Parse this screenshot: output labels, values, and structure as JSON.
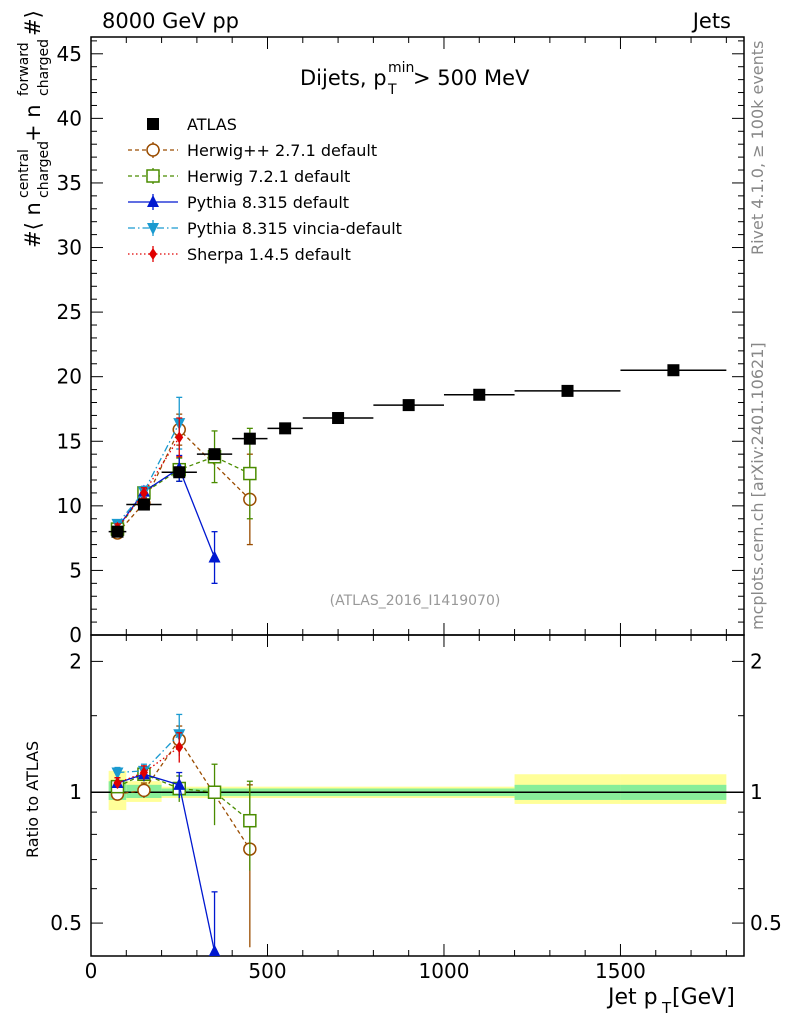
{
  "header": {
    "left": "8000 GeV pp",
    "right": "Jets",
    "right_side_1": "Rivet 4.1.0, ≥ 100k events",
    "right_side_2": "mcplots.cern.ch [arXiv:2401.10621]"
  },
  "chart_data": {
    "type": "scatter",
    "title": "Dijets, p_T^min > 500 MeV",
    "title_main": "Dijets, p",
    "title_sup": "min",
    "title_sub": "T",
    "title_tail": " > 500 MeV",
    "watermark": "(ATLAS_2016_I1419070)",
    "xlabel": "Jet p",
    "xlabel_sub": "T",
    "xlabel_tail": " [GeV]",
    "ylabel": "#⟨ n_charged^central + n_charged^forward #⟩",
    "ylabel_parts": {
      "a": "#⟨ n",
      "b_sup": "central",
      "b_sub": "charged",
      "c": " + n",
      "d_sup": "forward",
      "d_sub": "charged",
      "e": " #⟩"
    },
    "ratio_ylabel": "Ratio to ATLAS",
    "xlim": [
      0,
      1850
    ],
    "ylim": [
      0,
      46.3
    ],
    "ratio_ylim": [
      0.42,
      2.3
    ],
    "x_ticks": [
      0,
      500,
      1000,
      1500
    ],
    "x_tick_labels": [
      "0",
      "500",
      "1000",
      "1500"
    ],
    "y_ticks": [
      0,
      5,
      10,
      15,
      20,
      25,
      30,
      35,
      40,
      45
    ],
    "y_tick_labels": [
      "0",
      "5",
      "10",
      "15",
      "20",
      "25",
      "30",
      "35",
      "40",
      "45"
    ],
    "ratio_ticks": [
      0.5,
      1,
      2
    ],
    "ratio_tick_labels": [
      "0.5",
      "1",
      "2"
    ],
    "series": [
      {
        "name": "ATLAS",
        "color": "#000000",
        "marker": "square-filled",
        "line": "none",
        "x": [
          75,
          150,
          250,
          350,
          450,
          550,
          700,
          900,
          1100,
          1350,
          1650
        ],
        "xerr": [
          25,
          50,
          50,
          50,
          50,
          50,
          100,
          100,
          100,
          150,
          150
        ],
        "y": [
          8.0,
          10.1,
          12.6,
          14.0,
          15.2,
          16.0,
          16.8,
          17.8,
          18.6,
          18.9,
          20.5
        ]
      },
      {
        "name": "Herwig++ 2.7.1 default",
        "color": "#9a4c00",
        "marker": "circle-open",
        "line": "dashed",
        "x": [
          75,
          150,
          250,
          450
        ],
        "y": [
          7.9,
          10.2,
          15.9,
          10.5
        ],
        "yerr": [
          0.3,
          0.4,
          1.2,
          3.5
        ],
        "ratio": [
          0.99,
          1.01,
          1.32,
          0.74
        ],
        "ratio_err": [
          0.03,
          0.04,
          0.1,
          0.3
        ]
      },
      {
        "name": "Herwig 7.2.1 default",
        "color": "#4a8c00",
        "marker": "square-open",
        "line": "dashed",
        "x": [
          75,
          150,
          250,
          350,
          450
        ],
        "y": [
          8.2,
          11.0,
          12.8,
          13.8,
          12.5
        ],
        "yerr": [
          0.3,
          0.4,
          0.9,
          2.0,
          3.5
        ],
        "ratio": [
          1.03,
          1.1,
          1.02,
          1.0,
          0.86
        ],
        "ratio_err": [
          0.03,
          0.04,
          0.07,
          0.16,
          0.2
        ]
      },
      {
        "name": "Pythia 8.315 default",
        "color": "#0018d0",
        "marker": "triangle-up",
        "line": "solid",
        "x": [
          75,
          150,
          250,
          350
        ],
        "y": [
          8.3,
          11.1,
          12.9,
          6.0
        ],
        "yerr": [
          0.3,
          0.4,
          1.0,
          2.0
        ],
        "ratio": [
          1.05,
          1.1,
          1.04,
          0.43
        ],
        "ratio_err": [
          0.03,
          0.04,
          0.07,
          0.16
        ]
      },
      {
        "name": "Pythia 8.315 vincia-default",
        "color": "#1a9ad0",
        "marker": "triangle-down",
        "line": "dashdot",
        "x": [
          75,
          150,
          250
        ],
        "y": [
          8.6,
          11.1,
          16.4
        ],
        "yerr": [
          0.3,
          0.4,
          2.0
        ],
        "ratio": [
          1.11,
          1.12,
          1.36
        ],
        "ratio_err": [
          0.03,
          0.04,
          0.15
        ]
      },
      {
        "name": "Sherpa 1.4.5 default",
        "color": "#e00000",
        "marker": "diamond",
        "line": "dotted",
        "x": [
          75,
          150,
          250
        ],
        "y": [
          8.3,
          11.0,
          15.3
        ],
        "yerr": [
          0.3,
          0.4,
          1.5
        ],
        "ratio": [
          1.05,
          1.11,
          1.27
        ],
        "ratio_err": [
          0.03,
          0.04,
          0.1
        ]
      }
    ],
    "ratio_bands": [
      {
        "x0": 50,
        "x1": 100,
        "inner": [
          0.96,
          1.06
        ],
        "outer": [
          0.91,
          1.12
        ]
      },
      {
        "x0": 100,
        "x1": 200,
        "inner": [
          0.97,
          1.04
        ],
        "outer": [
          0.95,
          1.06
        ]
      },
      {
        "x0": 200,
        "x1": 1200,
        "inner": [
          0.98,
          1.02
        ],
        "outer": [
          0.97,
          1.03
        ]
      },
      {
        "x0": 1200,
        "x1": 1500,
        "inner": [
          0.96,
          1.04
        ],
        "outer": [
          0.94,
          1.1
        ]
      },
      {
        "x0": 1500,
        "x1": 1800,
        "inner": [
          0.96,
          1.04
        ],
        "outer": [
          0.94,
          1.1
        ]
      }
    ]
  }
}
